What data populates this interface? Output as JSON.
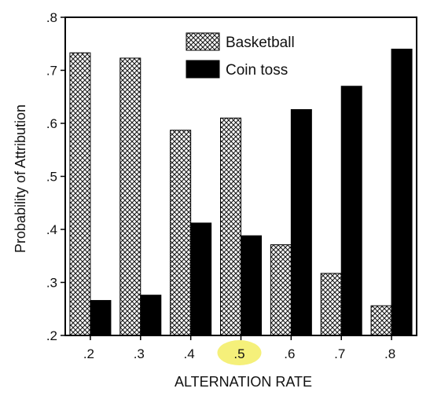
{
  "chart_data": {
    "type": "bar",
    "categories": [
      ".2",
      ".3",
      ".4",
      ".5",
      ".6",
      ".7",
      ".8"
    ],
    "series": [
      {
        "name": "Basketball",
        "values": [
          0.733,
          0.723,
          0.587,
          0.61,
          0.371,
          0.317,
          0.256
        ],
        "pattern": "crosshatch"
      },
      {
        "name": "Coin toss",
        "values": [
          0.266,
          0.276,
          0.412,
          0.388,
          0.626,
          0.67,
          0.74
        ],
        "color": "#000000"
      }
    ],
    "title": "",
    "xlabel": "ALTERNATION RATE",
    "ylabel": "Probability of Attribution",
    "ylim": [
      0.2,
      0.8
    ],
    "yticks": [
      ".2",
      ".3",
      ".4",
      ".5",
      ".6",
      ".7",
      ".8"
    ],
    "grid": false,
    "legend_position": "top-right",
    "highlighted_category": ".5",
    "highlight_color": "#f5f07a"
  }
}
